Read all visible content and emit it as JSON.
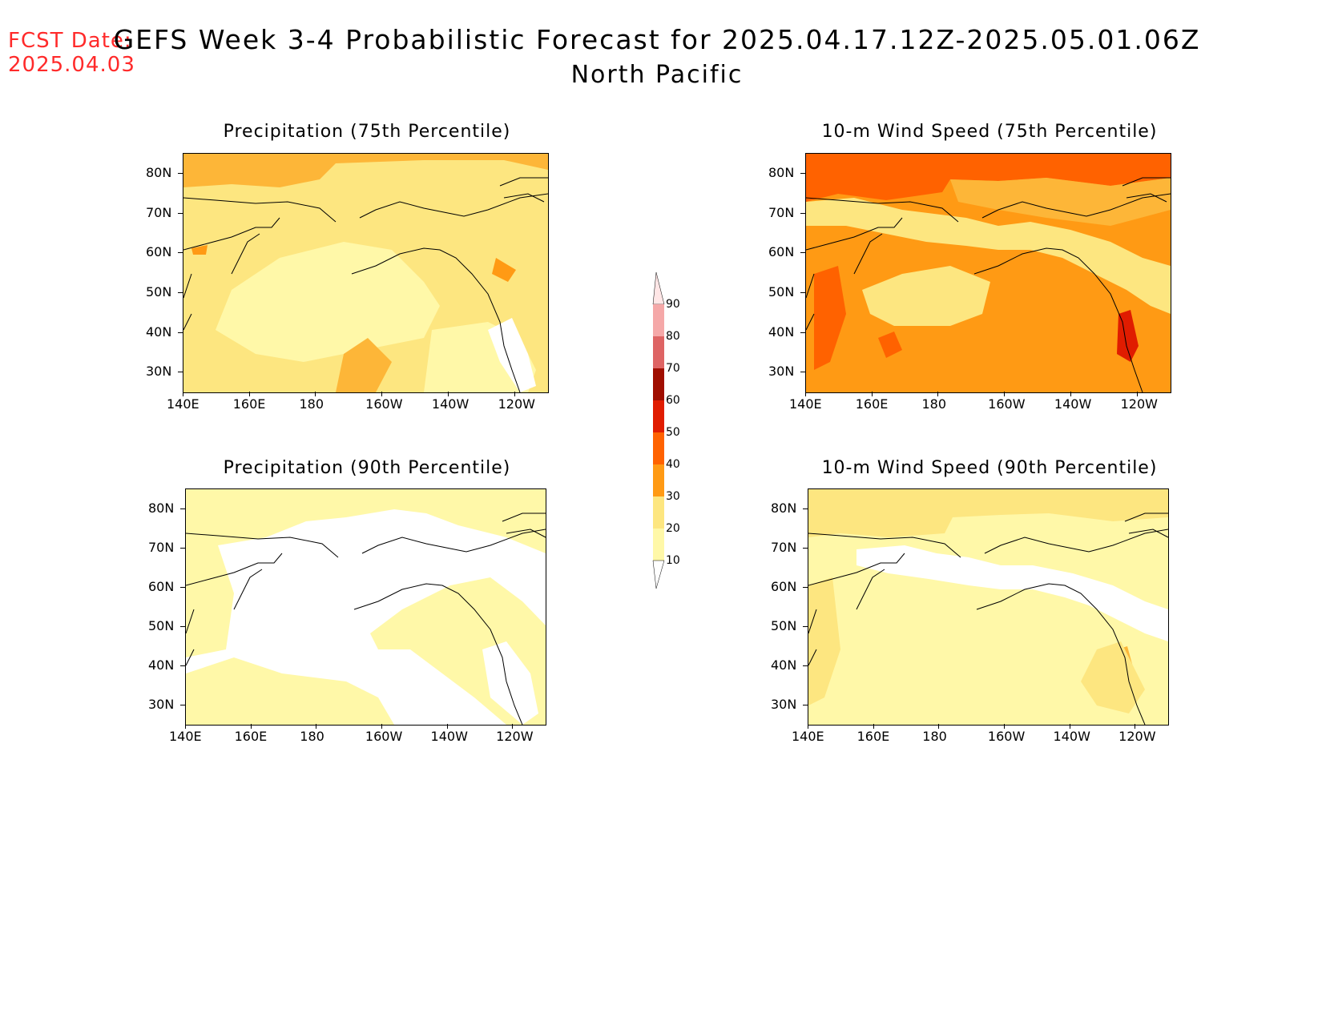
{
  "header": {
    "fcst_label": "FCST Date:",
    "fcst_date": "2025.04.03",
    "title": "GEFS Week 3-4 Probabilistic Forecast for 2025.04.17.12Z-2025.05.01.06Z",
    "subtitle": "North Pacific"
  },
  "axes": {
    "lon_ticks": [
      "140E",
      "160E",
      "180",
      "160W",
      "140W",
      "120W"
    ],
    "lat_ticks": [
      "80N",
      "70N",
      "60N",
      "50N",
      "40N",
      "30N"
    ]
  },
  "colors": {
    "level_10": "#fff8a8",
    "level_20": "#fde680",
    "level_30": "#fdb638",
    "level_40": "#ff9a14",
    "level_50": "#ff6200",
    "level_60": "#e01c00",
    "level_70": "#a00e00",
    "level_80": "#de6464",
    "level_90": "#f5a8a8",
    "level_top": "#ffe6e6"
  },
  "colorbar": {
    "labels": [
      "90",
      "80",
      "70",
      "60",
      "50",
      "40",
      "30",
      "20",
      "10"
    ]
  },
  "panels": [
    {
      "id": "precip75",
      "title": "Precipitation (75th Percentile)",
      "base_level": "level_20"
    },
    {
      "id": "wind75",
      "title": "10-m Wind Speed (75th Percentile)",
      "base_level": "level_40"
    },
    {
      "id": "precip90",
      "title": "Precipitation (90th Percentile)",
      "base_level": "level_10"
    },
    {
      "id": "wind90",
      "title": "10-m Wind Speed (90th Percentile)",
      "base_level": "level_10"
    }
  ]
}
